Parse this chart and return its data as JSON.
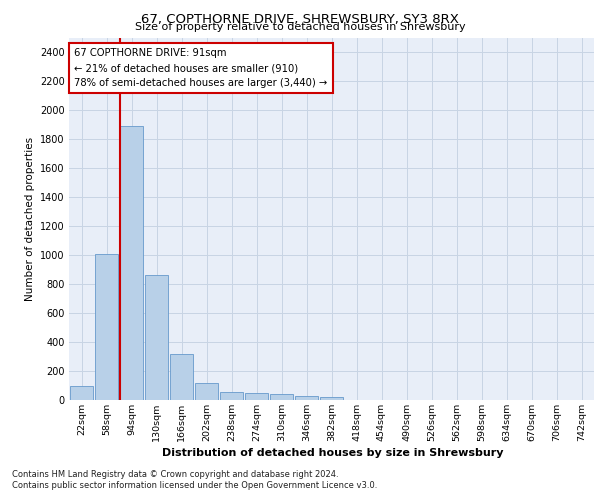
{
  "title": "67, COPTHORNE DRIVE, SHREWSBURY, SY3 8RX",
  "subtitle": "Size of property relative to detached houses in Shrewsbury",
  "xlabel": "Distribution of detached houses by size in Shrewsbury",
  "ylabel": "Number of detached properties",
  "bar_labels": [
    "22sqm",
    "58sqm",
    "94sqm",
    "130sqm",
    "166sqm",
    "202sqm",
    "238sqm",
    "274sqm",
    "310sqm",
    "346sqm",
    "382sqm",
    "418sqm",
    "454sqm",
    "490sqm",
    "526sqm",
    "562sqm",
    "598sqm",
    "634sqm",
    "670sqm",
    "706sqm",
    "742sqm"
  ],
  "bar_values": [
    95,
    1010,
    1890,
    860,
    315,
    115,
    57,
    50,
    40,
    25,
    20,
    0,
    0,
    0,
    0,
    0,
    0,
    0,
    0,
    0,
    0
  ],
  "bar_color": "#b8d0e8",
  "bar_edge_color": "#6699cc",
  "highlight_bar_index": 2,
  "highlight_color": "#cc0000",
  "annotation_text": "67 COPTHORNE DRIVE: 91sqm\n← 21% of detached houses are smaller (910)\n78% of semi-detached houses are larger (3,440) →",
  "annotation_box_color": "#ffffff",
  "annotation_box_edge": "#cc0000",
  "ylim": [
    0,
    2500
  ],
  "yticks": [
    0,
    200,
    400,
    600,
    800,
    1000,
    1200,
    1400,
    1600,
    1800,
    2000,
    2200,
    2400
  ],
  "grid_color": "#c8d4e4",
  "background_color": "#e8eef8",
  "footer_line1": "Contains HM Land Registry data © Crown copyright and database right 2024.",
  "footer_line2": "Contains public sector information licensed under the Open Government Licence v3.0."
}
